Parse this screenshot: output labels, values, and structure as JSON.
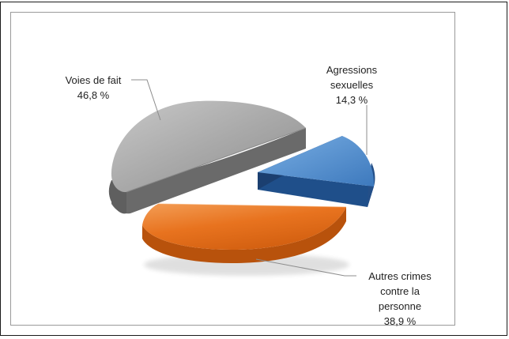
{
  "chart_data": {
    "type": "pie",
    "title": "",
    "slices": [
      {
        "name": "Agressions sexuelles",
        "value": 14.3,
        "label_lines": [
          "Agressions",
          "sexuelles",
          "14,3 %"
        ],
        "color": "#4a86c8"
      },
      {
        "name": "Autres crimes contre la personne",
        "value": 38.9,
        "label_lines": [
          "Autres crimes",
          "contre la",
          "personne",
          "38,9 %"
        ],
        "color": "#e8731f"
      },
      {
        "name": "Voies de fait",
        "value": 46.8,
        "label_lines": [
          "Voies de fait",
          "46,8 %"
        ],
        "color": "#9e9e9e"
      }
    ],
    "style": "3d-exploded",
    "legend": "none"
  }
}
